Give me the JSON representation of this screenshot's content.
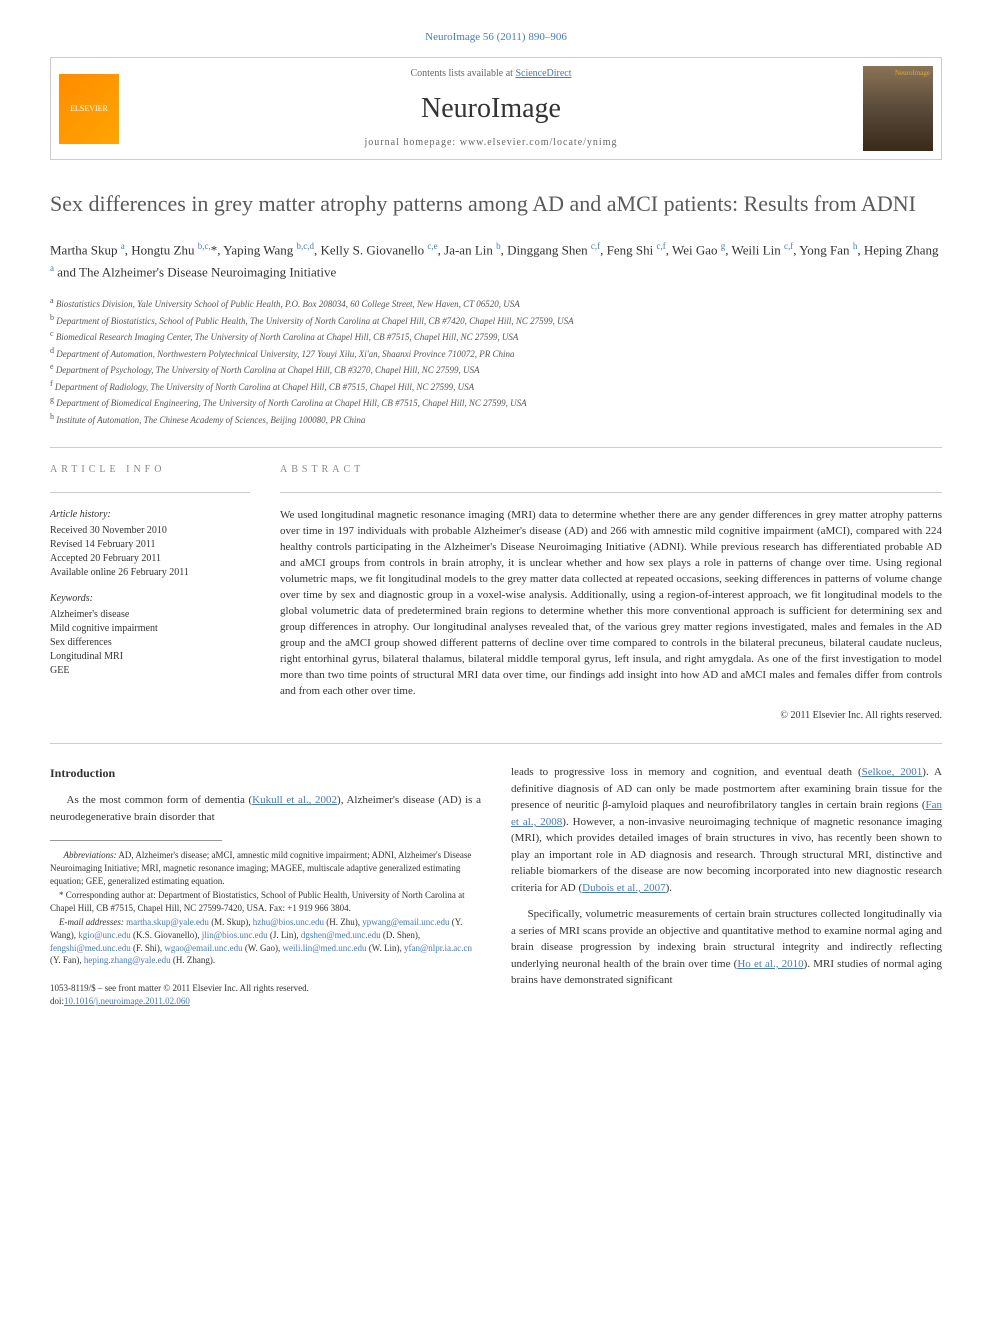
{
  "top_citation": "NeuroImage 56 (2011) 890–906",
  "header": {
    "contents_prefix": "Contents lists available at ",
    "contents_link": "ScienceDirect",
    "journal_name": "NeuroImage",
    "homepage_prefix": "journal homepage: ",
    "homepage_url": "www.elsevier.com/locate/ynimg",
    "publisher_logo_label": "ELSEVIER",
    "cover_label": "NeuroImage"
  },
  "title": "Sex differences in grey matter atrophy patterns among AD and aMCI patients: Results from ADNI",
  "authors_html": "Martha Skup <sup>a</sup>, Hongtu Zhu <sup>b,c,</sup>*, Yaping Wang <sup>b,c,d</sup>, Kelly S. Giovanello <sup>c,e</sup>, Ja-an Lin <sup>b</sup>, Dinggang Shen <sup>c,f</sup>, Feng Shi <sup>c,f</sup>, Wei Gao <sup>g</sup>, Weili Lin <sup>c,f</sup>, Yong Fan <sup>h</sup>, Heping Zhang <sup>a</sup> and The Alzheimer's Disease Neuroimaging Initiative",
  "affiliations": [
    "a Biostatistics Division, Yale University School of Public Health, P.O. Box 208034, 60 College Street, New Haven, CT 06520, USA",
    "b Department of Biostatistics, School of Public Health, The University of North Carolina at Chapel Hill, CB #7420, Chapel Hill, NC 27599, USA",
    "c Biomedical Research Imaging Center, The University of North Carolina at Chapel Hill, CB #7515, Chapel Hill, NC 27599, USA",
    "d Department of Automation, Northwestern Polytechnical University, 127 Youyi Xilu, Xi'an, Shaanxi Province 710072, PR China",
    "e Department of Psychology, The University of North Carolina at Chapel Hill, CB #3270, Chapel Hill, NC 27599, USA",
    "f Department of Radiology, The University of North Carolina at Chapel Hill, CB #7515, Chapel Hill, NC 27599, USA",
    "g Department of Biomedical Engineering, The University of North Carolina at Chapel Hill, CB #7515, Chapel Hill, NC 27599, USA",
    "h Institute of Automation, The Chinese Academy of Sciences, Beijing 100080, PR China"
  ],
  "article_info": {
    "heading": "ARTICLE INFO",
    "history_label": "Article history:",
    "history": [
      "Received 30 November 2010",
      "Revised 14 February 2011",
      "Accepted 20 February 2011",
      "Available online 26 February 2011"
    ],
    "keywords_label": "Keywords:",
    "keywords": [
      "Alzheimer's disease",
      "Mild cognitive impairment",
      "Sex differences",
      "Longitudinal MRI",
      "GEE"
    ]
  },
  "abstract": {
    "heading": "ABSTRACT",
    "text": "We used longitudinal magnetic resonance imaging (MRI) data to determine whether there are any gender differences in grey matter atrophy patterns over time in 197 individuals with probable Alzheimer's disease (AD) and 266 with amnestic mild cognitive impairment (aMCI), compared with 224 healthy controls participating in the Alzheimer's Disease Neuroimaging Initiative (ADNI). While previous research has differentiated probable AD and aMCI groups from controls in brain atrophy, it is unclear whether and how sex plays a role in patterns of change over time. Using regional volumetric maps, we fit longitudinal models to the grey matter data collected at repeated occasions, seeking differences in patterns of volume change over time by sex and diagnostic group in a voxel-wise analysis. Additionally, using a region-of-interest approach, we fit longitudinal models to the global volumetric data of predetermined brain regions to determine whether this more conventional approach is sufficient for determining sex and group differences in atrophy. Our longitudinal analyses revealed that, of the various grey matter regions investigated, males and females in the AD group and the aMCI group showed different patterns of decline over time compared to controls in the bilateral precuneus, bilateral caudate nucleus, right entorhinal gyrus, bilateral thalamus, bilateral middle temporal gyrus, left insula, and right amygdala. As one of the first investigation to model more than two time points of structural MRI data over time, our findings add insight into how AD and aMCI males and females differ from controls and from each other over time.",
    "copyright": "© 2011 Elsevier Inc. All rights reserved."
  },
  "intro": {
    "heading": "Introduction",
    "para1_prefix": "As the most common form of dementia (",
    "para1_cite1": "Kukull et al., 2002",
    "para1_mid": "), Alzheimer's disease (AD) is a neurodegenerative brain disorder that",
    "para1_cont": "leads to progressive loss in memory and cognition, and eventual death (",
    "para1_cite2": "Selkoe, 2001",
    "para1_cont2": "). A definitive diagnosis of AD can only be made postmortem after examining brain tissue for the presence of neuritic β-amyloid plaques and neurofibrilatory tangles in certain brain regions (",
    "para1_cite3": "Fan et al., 2008",
    "para1_cont3": "). However, a non-invasive neuroimaging technique of magnetic resonance imaging (MRI), which provides detailed images of brain structures in vivo, has recently been shown to play an important role in AD diagnosis and research. Through structural MRI, distinctive and reliable biomarkers of the disease are now becoming incorporated into new diagnostic research criteria for AD (",
    "para1_cite4": "Dubois et al., 2007",
    "para1_cont4": ").",
    "para2_prefix": "Specifically, volumetric measurements of certain brain structures collected longitudinally via a series of MRI scans provide an objective and quantitative method to examine normal aging and brain disease progression by indexing brain structural integrity and indirectly reflecting underlying neuronal health of the brain over time (",
    "para2_cite1": "Ho et al., 2010",
    "para2_cont": "). MRI studies of normal aging brains have demonstrated significant"
  },
  "footnotes": {
    "abbrev_label": "Abbreviations:",
    "abbrev_text": " AD, Alzheimer's disease; aMCI, amnestic mild cognitive impairment; ADNI, Alzheimer's Disease Neuroimaging Initiative; MRI, magnetic resonance imaging; MAGEE, multiscale adaptive generalized estimating equation; GEE, generalized estimating equation.",
    "corresp_marker": "*",
    "corresp_text": " Corresponding author at: Department of Biostatistics, School of Public Health, University of North Carolina at Chapel Hill, CB #7515, Chapel Hill, NC 27599-7420, USA. Fax: +1 919 966 3804.",
    "emails_label": "E-mail addresses:",
    "emails": [
      {
        "email": "martha.skup@yale.edu",
        "name": "(M. Skup)"
      },
      {
        "email": "hzhu@bios.unc.edu",
        "name": "(H. Zhu)"
      },
      {
        "email": "ypwang@email.unc.edu",
        "name": "(Y. Wang)"
      },
      {
        "email": "kgio@unc.edu",
        "name": "(K.S. Giovanello)"
      },
      {
        "email": "jlin@bios.unc.edu",
        "name": "(J. Lin)"
      },
      {
        "email": "dgshen@med.unc.edu",
        "name": "(D. Shen)"
      },
      {
        "email": "fengshi@med.unc.edu",
        "name": "(F. Shi)"
      },
      {
        "email": "wgao@email.unc.edu",
        "name": "(W. Gao)"
      },
      {
        "email": "weili.lin@med.unc.edu",
        "name": "(W. Lin)"
      },
      {
        "email": "yfan@nlpr.ia.ac.cn",
        "name": "(Y. Fan)"
      },
      {
        "email": "heping.zhang@yale.edu",
        "name": "(H. Zhang)"
      }
    ]
  },
  "footer": {
    "issn_line": "1053-8119/$ – see front matter © 2011 Elsevier Inc. All rights reserved.",
    "doi_prefix": "doi:",
    "doi": "10.1016/j.neuroimage.2011.02.060"
  },
  "colors": {
    "link": "#4a7bb5",
    "text": "#333333",
    "muted": "#888888",
    "border": "#cccccc"
  }
}
